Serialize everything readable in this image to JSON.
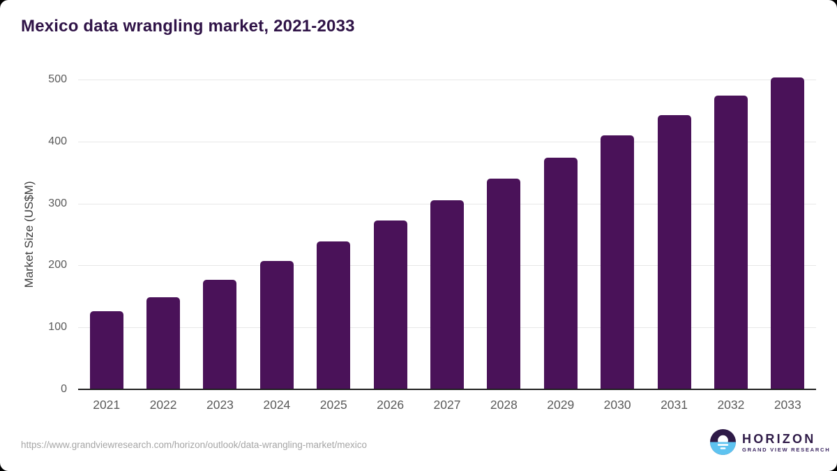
{
  "header": {
    "title": "Mexico data wrangling market, 2021-2033"
  },
  "chart_data": {
    "type": "bar",
    "title": "Mexico data wrangling market, 2021-2033",
    "categories": [
      "2021",
      "2022",
      "2023",
      "2024",
      "2025",
      "2026",
      "2027",
      "2028",
      "2029",
      "2030",
      "2031",
      "2032",
      "2033"
    ],
    "values": [
      126,
      149,
      177,
      207,
      239,
      272,
      305,
      340,
      374,
      410,
      443,
      474,
      503
    ],
    "xlabel": "",
    "ylabel": "Market Size (US$M)",
    "ylim": [
      0,
      500
    ],
    "yticks": [
      0,
      100,
      200,
      300,
      400,
      500
    ],
    "grid": true,
    "legend_position": "none",
    "colors": {
      "bar": "#4a1259",
      "gridline": "#e7e7e7",
      "axis_line": "#1f1f1f",
      "tick_label": "#595959",
      "title": "#2f1347"
    }
  },
  "footer": {
    "source_url": "https://www.grandviewresearch.com/horizon/outlook/data-wrangling-market/mexico",
    "logo": {
      "name": "HORIZON",
      "tagline": "GRAND VIEW RESEARCH",
      "icon": "horizon-sunset-circle-icon",
      "icon_purple": "#2e1a47",
      "icon_blue": "#5ec3f0"
    }
  }
}
